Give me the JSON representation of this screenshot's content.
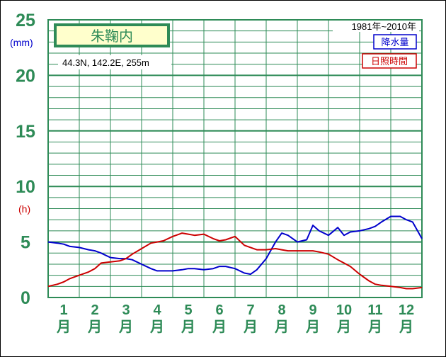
{
  "chart_data": {
    "type": "line",
    "title": "朱鞠内",
    "location": "44.3N, 142.2E, 255m",
    "period": "1981年~2010年",
    "yunit_primary": "(mm)",
    "yunit_secondary": "(h)",
    "ylim": [
      0,
      25
    ],
    "yticks": [
      0,
      5,
      10,
      15,
      20,
      25
    ],
    "xlim": [
      0.5,
      12.5
    ],
    "categories": [
      "1",
      "2",
      "3",
      "4",
      "5",
      "6",
      "7",
      "8",
      "9",
      "10",
      "11",
      "12"
    ],
    "xlabel_suffix": "月",
    "grid": true,
    "legend_position": "top-right",
    "series": [
      {
        "name": "降水量",
        "color": "#0000cc",
        "x": [
          0.5,
          0.8,
          1.0,
          1.2,
          1.5,
          1.8,
          2.0,
          2.2,
          2.5,
          2.8,
          3.0,
          3.2,
          3.5,
          3.8,
          4.0,
          4.2,
          4.5,
          4.8,
          5.0,
          5.2,
          5.5,
          5.8,
          6.0,
          6.2,
          6.5,
          6.8,
          7.0,
          7.2,
          7.5,
          7.8,
          8.0,
          8.2,
          8.5,
          8.8,
          9.0,
          9.2,
          9.5,
          9.8,
          10.0,
          10.2,
          10.5,
          10.8,
          11.0,
          11.2,
          11.5,
          11.8,
          12.0,
          12.2,
          12.5
        ],
        "y": [
          5.0,
          4.9,
          4.8,
          4.6,
          4.5,
          4.3,
          4.2,
          4.0,
          3.6,
          3.5,
          3.5,
          3.4,
          3.0,
          2.6,
          2.4,
          2.4,
          2.4,
          2.5,
          2.6,
          2.6,
          2.5,
          2.6,
          2.8,
          2.8,
          2.6,
          2.2,
          2.1,
          2.5,
          3.5,
          5.0,
          5.8,
          5.6,
          5.0,
          5.2,
          6.5,
          6.0,
          5.6,
          6.3,
          5.6,
          5.9,
          6.0,
          6.2,
          6.4,
          6.8,
          7.3,
          7.3,
          7.0,
          6.8,
          5.3
        ]
      },
      {
        "name": "日照時間",
        "color": "#cc0000",
        "x": [
          0.5,
          0.8,
          1.0,
          1.2,
          1.5,
          1.8,
          2.0,
          2.2,
          2.5,
          2.8,
          3.0,
          3.2,
          3.5,
          3.8,
          4.0,
          4.2,
          4.5,
          4.8,
          5.0,
          5.2,
          5.5,
          5.8,
          6.0,
          6.2,
          6.5,
          6.8,
          7.0,
          7.2,
          7.5,
          7.8,
          8.0,
          8.2,
          8.5,
          8.8,
          9.0,
          9.2,
          9.5,
          9.8,
          10.0,
          10.2,
          10.5,
          10.8,
          11.0,
          11.2,
          11.5,
          11.8,
          12.0,
          12.2,
          12.5
        ],
        "y": [
          1.0,
          1.2,
          1.4,
          1.7,
          2.0,
          2.3,
          2.6,
          3.1,
          3.2,
          3.3,
          3.5,
          3.9,
          4.4,
          4.9,
          5.0,
          5.1,
          5.5,
          5.8,
          5.7,
          5.6,
          5.7,
          5.3,
          5.1,
          5.2,
          5.5,
          4.7,
          4.5,
          4.3,
          4.3,
          4.4,
          4.3,
          4.2,
          4.2,
          4.2,
          4.2,
          4.1,
          3.9,
          3.4,
          3.1,
          2.8,
          2.1,
          1.5,
          1.2,
          1.1,
          1.0,
          0.9,
          0.8,
          0.8,
          0.9
        ]
      }
    ]
  }
}
